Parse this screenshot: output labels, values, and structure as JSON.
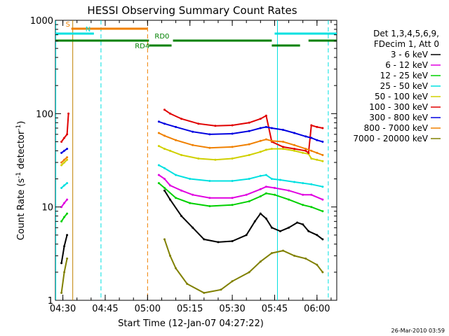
{
  "chart_data": {
    "type": "line",
    "title": "HESSI Observing Summary Count Rates",
    "xlabel": "Start Time (12-Jan-07 04:27:22)",
    "ylabel_main": "Count Rate (s",
    "ylabel_sup1": "-1",
    "ylabel_mid": " detector",
    "ylabel_sup2": "-1",
    "ylabel_end": ")",
    "y_scale": "log",
    "ylim": [
      1,
      1000
    ],
    "xlim": [
      "04:27:22",
      "06:07:00"
    ],
    "x_ticks": [
      "04:30",
      "04:45",
      "05:00",
      "05:15",
      "05:30",
      "05:45",
      "06:00"
    ],
    "y_ticks": [
      "1",
      "10",
      "100",
      "1000"
    ],
    "legend_header": [
      "Det 1,3,4,5,6,9,",
      "FDecim 1, Att 0"
    ],
    "series": [
      {
        "name": "3 - 6 keV",
        "color": "#000000",
        "segments": [
          [
            [
              "04:29:30",
              2.5
            ],
            [
              "04:30:30",
              3.8
            ],
            [
              "04:31:30",
              5.0
            ]
          ],
          [
            [
              "05:06:00",
              15
            ],
            [
              "05:08:00",
              12
            ],
            [
              "05:12:00",
              8
            ],
            [
              "05:16:00",
              6
            ],
            [
              "05:20:00",
              4.5
            ],
            [
              "05:25:00",
              4.2
            ],
            [
              "05:30:00",
              4.3
            ],
            [
              "05:35:00",
              5.0
            ],
            [
              "05:38:00",
              7.0
            ],
            [
              "05:40:00",
              8.5
            ],
            [
              "05:42:00",
              7.5
            ],
            [
              "05:44:00",
              6.0
            ],
            [
              "05:47:00",
              5.5
            ],
            [
              "05:50:00",
              6.0
            ],
            [
              "05:53:00",
              6.8
            ],
            [
              "05:55:00",
              6.5
            ],
            [
              "05:57:00",
              5.5
            ],
            [
              "06:00:00",
              5.0
            ],
            [
              "06:02:00",
              4.5
            ]
          ]
        ]
      },
      {
        "name": "6 - 12 keV",
        "color": "#e000e0",
        "segments": [
          [
            [
              "04:29:30",
              10
            ],
            [
              "04:30:30",
              11
            ],
            [
              "04:31:30",
              12
            ]
          ],
          [
            [
              "05:04:00",
              22
            ],
            [
              "05:06:00",
              20
            ],
            [
              "05:08:00",
              17
            ],
            [
              "05:12:00",
              15
            ],
            [
              "05:16:00",
              13.5
            ],
            [
              "05:22:00",
              12.5
            ],
            [
              "05:30:00",
              12.5
            ],
            [
              "05:35:00",
              13.5
            ],
            [
              "05:40:00",
              15.5
            ],
            [
              "05:42:00",
              16.5
            ],
            [
              "05:45:00",
              16
            ],
            [
              "05:50:00",
              15
            ],
            [
              "05:55:00",
              13.5
            ],
            [
              "05:58:00",
              13.5
            ],
            [
              "06:02:00",
              12
            ]
          ]
        ]
      },
      {
        "name": "12 - 25 keV",
        "color": "#00d000",
        "segments": [
          [
            [
              "04:29:30",
              7
            ],
            [
              "04:30:30",
              7.8
            ],
            [
              "04:31:30",
              8.5
            ]
          ],
          [
            [
              "05:04:00",
              18
            ],
            [
              "05:06:00",
              16
            ],
            [
              "05:10:00",
              12.5
            ],
            [
              "05:15:00",
              11
            ],
            [
              "05:22:00",
              10.2
            ],
            [
              "05:30:00",
              10.5
            ],
            [
              "05:36:00",
              11.5
            ],
            [
              "05:40:00",
              13
            ],
            [
              "05:42:00",
              14
            ],
            [
              "05:45:00",
              13.5
            ],
            [
              "05:50:00",
              12
            ],
            [
              "05:55:00",
              10.5
            ],
            [
              "05:58:00",
              10
            ],
            [
              "06:02:00",
              9
            ]
          ]
        ]
      },
      {
        "name": "25 - 50 keV",
        "color": "#00e0e0",
        "segments": [
          [
            [
              "04:29:30",
              16
            ],
            [
              "04:30:30",
              17
            ],
            [
              "04:31:30",
              18
            ]
          ],
          [
            [
              "05:04:00",
              28
            ],
            [
              "05:06:00",
              26
            ],
            [
              "05:10:00",
              22
            ],
            [
              "05:15:00",
              20
            ],
            [
              "05:22:00",
              19
            ],
            [
              "05:30:00",
              19
            ],
            [
              "05:36:00",
              20
            ],
            [
              "05:40:00",
              21.5
            ],
            [
              "05:42:00",
              22
            ],
            [
              "05:44:00",
              20
            ],
            [
              "05:47:00",
              19.5
            ],
            [
              "05:52:00",
              18.5
            ],
            [
              "05:55:00",
              18
            ],
            [
              "05:58:00",
              17.5
            ],
            [
              "06:02:00",
              16.5
            ]
          ]
        ]
      },
      {
        "name": "50 - 100 keV",
        "color": "#d0d000",
        "segments": [
          [
            [
              "04:29:30",
              28
            ],
            [
              "04:30:30",
              30
            ],
            [
              "04:31:30",
              32
            ]
          ],
          [
            [
              "05:04:00",
              45
            ],
            [
              "05:06:00",
              42
            ],
            [
              "05:08:00",
              40
            ],
            [
              "05:12:00",
              36
            ],
            [
              "05:18:00",
              33
            ],
            [
              "05:24:00",
              32
            ],
            [
              "05:30:00",
              33
            ],
            [
              "05:36:00",
              36
            ],
            [
              "05:40:00",
              39
            ],
            [
              "05:42:00",
              41
            ],
            [
              "05:44:00",
              42
            ],
            [
              "05:48:00",
              42
            ],
            [
              "05:52:00",
              40
            ],
            [
              "05:55:00",
              38
            ],
            [
              "05:57:00",
              37
            ],
            [
              "05:58:00",
              33
            ],
            [
              "06:00:00",
              32
            ],
            [
              "06:02:00",
              31
            ]
          ]
        ]
      },
      {
        "name": "100 - 300 keV",
        "color": "#e00000",
        "segments": [
          [
            [
              "04:29:30",
              50
            ],
            [
              "04:30:30",
              55
            ],
            [
              "04:31:30",
              60
            ],
            [
              "04:32:00",
              100
            ]
          ],
          [
            [
              "05:06:00",
              110
            ],
            [
              "05:08:00",
              100
            ],
            [
              "05:12:00",
              88
            ],
            [
              "05:18:00",
              78
            ],
            [
              "05:24:00",
              74
            ],
            [
              "05:30:00",
              75
            ],
            [
              "05:36:00",
              80
            ],
            [
              "05:40:00",
              88
            ],
            [
              "05:42:00",
              95
            ],
            [
              "05:44:00",
              50
            ],
            [
              "05:48:00",
              44
            ],
            [
              "05:52:00",
              42
            ],
            [
              "05:56:00",
              40
            ],
            [
              "05:57:00",
              38
            ],
            [
              "05:58:00",
              75
            ],
            [
              "06:00:00",
              72
            ],
            [
              "06:02:00",
              70
            ]
          ]
        ]
      },
      {
        "name": "300 - 800 keV",
        "color": "#0000e0",
        "segments": [
          [
            [
              "04:29:30",
              38
            ],
            [
              "04:30:30",
              40
            ],
            [
              "04:31:30",
              42
            ]
          ],
          [
            [
              "05:04:00",
              82
            ],
            [
              "05:06:00",
              78
            ],
            [
              "05:10:00",
              72
            ],
            [
              "05:16:00",
              64
            ],
            [
              "05:22:00",
              60
            ],
            [
              "05:30:00",
              61
            ],
            [
              "05:36:00",
              65
            ],
            [
              "05:40:00",
              70
            ],
            [
              "05:42:00",
              72
            ],
            [
              "05:44:00",
              70
            ],
            [
              "05:48:00",
              67
            ],
            [
              "05:52:00",
              62
            ],
            [
              "05:56:00",
              57
            ],
            [
              "05:58:00",
              55
            ],
            [
              "06:00:00",
              52
            ],
            [
              "06:02:00",
              50
            ]
          ]
        ]
      },
      {
        "name": "800 - 7000 keV",
        "color": "#f08000",
        "segments": [
          [
            [
              "04:29:30",
              30
            ],
            [
              "04:30:30",
              32
            ],
            [
              "04:31:30",
              34
            ]
          ],
          [
            [
              "05:04:00",
              62
            ],
            [
              "05:06:00",
              58
            ],
            [
              "05:10:00",
              52
            ],
            [
              "05:16:00",
              46
            ],
            [
              "05:22:00",
              43
            ],
            [
              "05:30:00",
              44
            ],
            [
              "05:36:00",
              47
            ],
            [
              "05:40:00",
              51
            ],
            [
              "05:42:00",
              53
            ],
            [
              "05:44:00",
              51
            ],
            [
              "05:48:00",
              50
            ],
            [
              "05:52:00",
              46
            ],
            [
              "05:56:00",
              42
            ],
            [
              "05:58:00",
              40
            ],
            [
              "06:00:00",
              38
            ],
            [
              "06:02:00",
              36
            ]
          ]
        ]
      },
      {
        "name": "7000 - 20000 keV",
        "color": "#808000",
        "segments": [
          [
            [
              "04:29:30",
              1.2
            ],
            [
              "04:30:30",
              2.0
            ],
            [
              "04:31:30",
              2.8
            ]
          ],
          [
            [
              "05:06:00",
              4.5
            ],
            [
              "05:08:00",
              3.0
            ],
            [
              "05:10:00",
              2.2
            ],
            [
              "05:14:00",
              1.5
            ],
            [
              "05:20:00",
              1.2
            ],
            [
              "05:26:00",
              1.3
            ],
            [
              "05:30:00",
              1.6
            ],
            [
              "05:36:00",
              2.0
            ],
            [
              "05:40:00",
              2.6
            ],
            [
              "05:44:00",
              3.2
            ],
            [
              "05:48:00",
              3.4
            ],
            [
              "05:52:00",
              3.0
            ],
            [
              "05:56:00",
              2.8
            ],
            [
              "06:00:00",
              2.4
            ],
            [
              "06:02:00",
              2.0
            ]
          ]
        ]
      }
    ],
    "annotations": [
      {
        "label": "S",
        "color": "#f08000",
        "row": 1,
        "segments": [
          [
            "04:33:00",
            "05:00:00"
          ]
        ]
      },
      {
        "label": "N",
        "color": "#00e0e0",
        "row": 2,
        "segments": [
          [
            "04:27:22",
            "04:41:00"
          ],
          [
            "05:45:00",
            "06:07:00"
          ]
        ]
      },
      {
        "label": "RD0",
        "color": "#008000",
        "row": 3,
        "segments": [
          [
            "04:27:22",
            "05:00:30"
          ],
          [
            "05:09:00",
            "05:44:00"
          ],
          [
            "05:57:00",
            "06:07:00"
          ]
        ]
      },
      {
        "label": "RD4",
        "color": "#008000",
        "row": 4,
        "segments": [
          [
            "05:00:30",
            "05:08:30"
          ],
          [
            "05:44:00",
            "05:54:00"
          ]
        ]
      }
    ],
    "vlines": [
      {
        "t": "04:27:30",
        "color": "#00e0e0",
        "style": "solid"
      },
      {
        "t": "04:33:30",
        "color": "#c08000",
        "style": "solid"
      },
      {
        "t": "04:43:30",
        "color": "#00e0e0",
        "style": "dashed"
      },
      {
        "t": "05:00:00",
        "color": "#f08000",
        "style": "dashed"
      },
      {
        "t": "05:46:00",
        "color": "#00e0e0",
        "style": "solid"
      },
      {
        "t": "06:04:00",
        "color": "#00e0e0",
        "style": "dashed"
      }
    ],
    "footer": "26-Mar-2010 03:59"
  }
}
